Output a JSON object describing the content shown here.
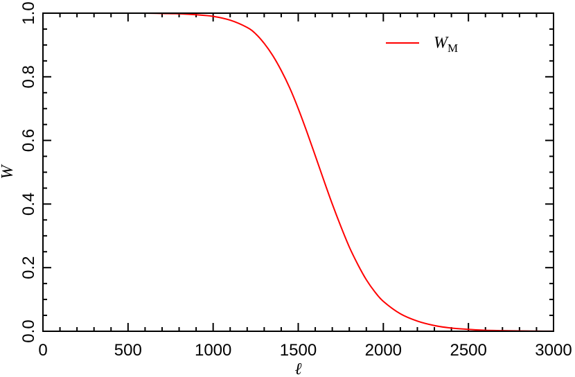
{
  "chart_data": {
    "type": "line",
    "xlabel": "ℓ",
    "ylabel": "W",
    "xlim": [
      0,
      3000
    ],
    "ylim": [
      0,
      1
    ],
    "xticks": [
      0,
      500,
      1000,
      1500,
      2000,
      2500,
      3000
    ],
    "xtick_labels": [
      "0",
      "500",
      "1000",
      "1500",
      "2000",
      "2500",
      "3000"
    ],
    "yticks": [
      0,
      0.2,
      0.4,
      0.6,
      0.8,
      1.0
    ],
    "ytick_labels": [
      "0.0",
      "0.2",
      "0.4",
      "0.6",
      "0.8",
      "1.0"
    ],
    "grid": false,
    "legend": "top-right",
    "series": [
      {
        "name": "W",
        "name_subscript": "M",
        "color": "#ff0000",
        "x": [
          200,
          400,
          600,
          700,
          800,
          900,
          1000,
          1100,
          1200,
          1250,
          1300,
          1350,
          1400,
          1450,
          1500,
          1550,
          1600,
          1650,
          1700,
          1750,
          1800,
          1850,
          1900,
          1950,
          2000,
          2100,
          2200,
          2300,
          2400,
          2500,
          2600,
          2700,
          2800,
          2900,
          3000
        ],
        "y": [
          1.0,
          1.0,
          1.0,
          0.999,
          0.998,
          0.995,
          0.99,
          0.978,
          0.955,
          0.935,
          0.905,
          0.867,
          0.82,
          0.765,
          0.7,
          0.628,
          0.552,
          0.475,
          0.4,
          0.33,
          0.265,
          0.21,
          0.162,
          0.124,
          0.094,
          0.055,
          0.032,
          0.018,
          0.01,
          0.006,
          0.003,
          0.002,
          0.001,
          0.0005,
          0.0002
        ]
      }
    ]
  }
}
